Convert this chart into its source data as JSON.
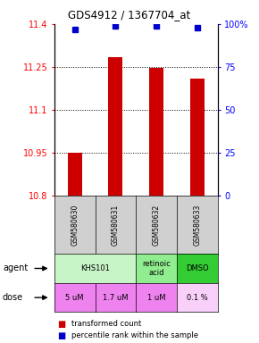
{
  "title": "GDS4912 / 1367704_at",
  "samples": [
    "GSM580630",
    "GSM580631",
    "GSM580632",
    "GSM580633"
  ],
  "bar_values": [
    10.95,
    11.285,
    11.248,
    11.21
  ],
  "percentile_values": [
    97,
    99,
    99,
    98
  ],
  "bar_color": "#cc0000",
  "dot_color": "#0000cc",
  "ylim_left": [
    10.8,
    11.4
  ],
  "yticks_left": [
    10.8,
    10.95,
    11.1,
    11.25,
    11.4
  ],
  "ytick_labels_left": [
    "10.8",
    "10.95",
    "11.1",
    "11.25",
    "11.4"
  ],
  "ylim_right": [
    0,
    100
  ],
  "yticks_right": [
    0,
    25,
    50,
    75,
    100
  ],
  "ytick_labels_right": [
    "0",
    "25",
    "50",
    "75",
    "100%"
  ],
  "agents": [
    {
      "label": "KHS101",
      "span": [
        0,
        2
      ],
      "color": "#c8f5c8"
    },
    {
      "label": "retinoic\nacid",
      "span": [
        2,
        3
      ],
      "color": "#90ee90"
    },
    {
      "label": "DMSO",
      "span": [
        3,
        4
      ],
      "color": "#33cc33"
    }
  ],
  "doses": [
    {
      "label": "5 uM",
      "span": [
        0,
        1
      ],
      "color": "#ee82ee"
    },
    {
      "label": "1.7 uM",
      "span": [
        1,
        2
      ],
      "color": "#ee82ee"
    },
    {
      "label": "1 uM",
      "span": [
        2,
        3
      ],
      "color": "#ee82ee"
    },
    {
      "label": "0.1 %",
      "span": [
        3,
        4
      ],
      "color": "#f9d0f9"
    }
  ],
  "legend_bar_label": "transformed count",
  "legend_dot_label": "percentile rank within the sample",
  "bar_bottom": 10.8,
  "sample_bg": "#d0d0d0",
  "bar_width": 0.35
}
